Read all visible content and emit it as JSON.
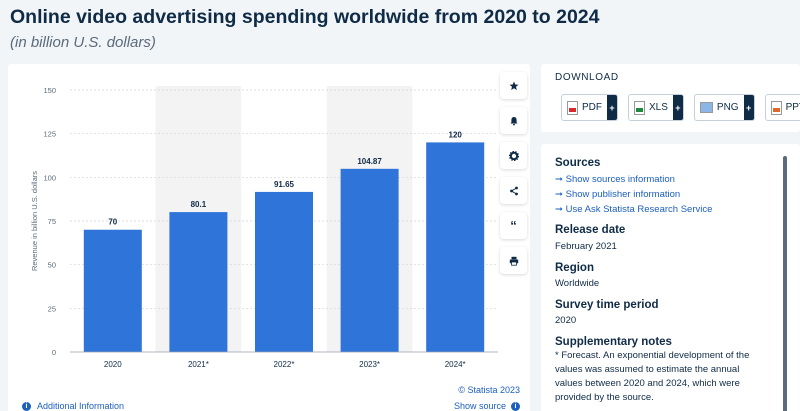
{
  "header": {
    "title": "Online video advertising spending worldwide from 2020 to 2024",
    "subtitle": "(in billion U.S. dollars)"
  },
  "chart_data": {
    "type": "bar",
    "categories": [
      "2020",
      "2021*",
      "2022*",
      "2023*",
      "2024*"
    ],
    "values": [
      70,
      80.1,
      91.65,
      104.87,
      120
    ],
    "value_labels": [
      "70",
      "80.1",
      "91.65",
      "104.87",
      "120"
    ],
    "ylabel": "Revenue in billion U.S. dollars",
    "ylim": [
      0,
      150
    ],
    "yticks": [
      0,
      25,
      50,
      75,
      100,
      125,
      150
    ],
    "bar_color": "#2e74d9",
    "grid": true,
    "shaded_categories": [
      "2021*",
      "2023*"
    ]
  },
  "chart_footer": {
    "copyright": "© Statista 2023",
    "additional_info": "Additional Information",
    "show_source": "Show source"
  },
  "toolbar": {
    "icons": [
      "star-icon",
      "bell-icon",
      "gear-icon",
      "share-icon",
      "quote-icon",
      "print-icon"
    ]
  },
  "download": {
    "title": "DOWNLOAD",
    "formats": [
      "PDF",
      "XLS",
      "PNG",
      "PPT"
    ]
  },
  "info": {
    "sources_heading": "Sources",
    "source_links": [
      "Show sources information",
      "Show publisher information",
      "Use Ask Statista Research Service"
    ],
    "release_date_heading": "Release date",
    "release_date": "February 2021",
    "region_heading": "Region",
    "region": "Worldwide",
    "survey_heading": "Survey time period",
    "survey_period": "2020",
    "notes_heading": "Supplementary notes",
    "notes": "* Forecast. An exponential development of the values was assumed to estimate the annual values between 2020 and 2024, which were provided by the source."
  }
}
